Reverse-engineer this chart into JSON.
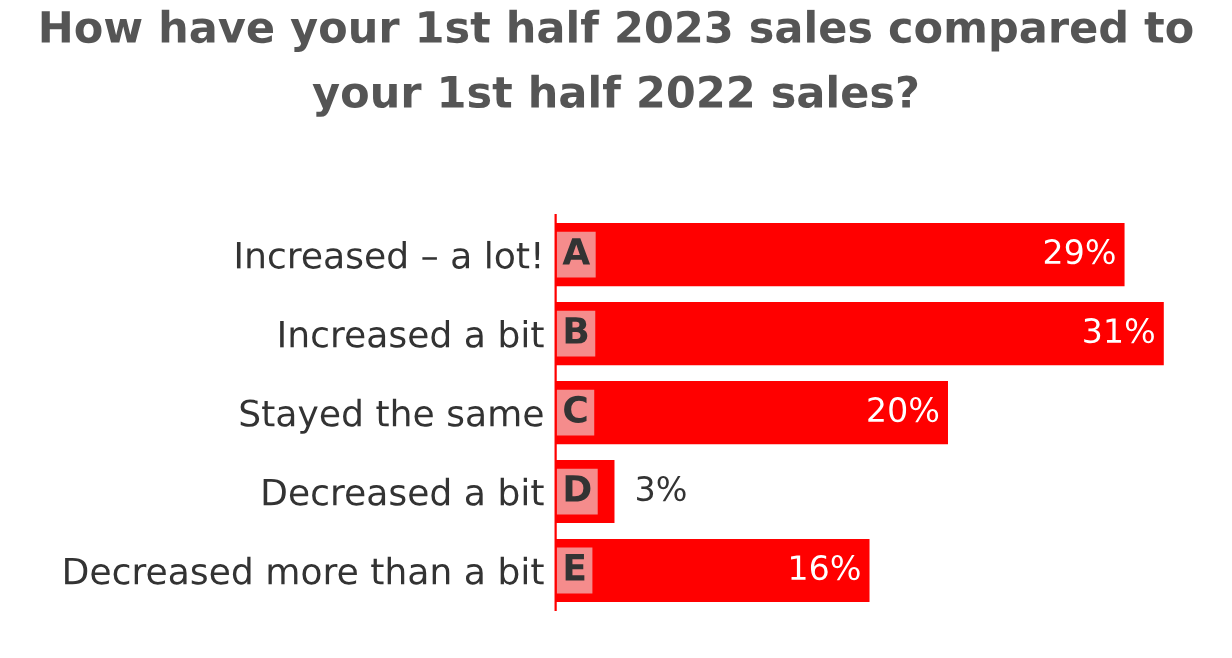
{
  "chart_data": {
    "type": "bar",
    "orientation": "horizontal",
    "title": "How have your 1st half 2023 sales compared to\nyour 1st half 2022 sales?",
    "categories": [
      "Increased – a lot!",
      "Increased a bit",
      "Stayed the same",
      "Decreased a bit",
      "Decreased more than a bit"
    ],
    "values": [
      29,
      31,
      20,
      3,
      16
    ],
    "color": "#ff0000",
    "value_labels": [
      "29%",
      "31%",
      "20%",
      "3%",
      "16%"
    ],
    "annotations": [
      "A",
      "B",
      "C",
      "D",
      "E"
    ],
    "tick_labels": "y",
    "grid": false,
    "legend": false
  }
}
